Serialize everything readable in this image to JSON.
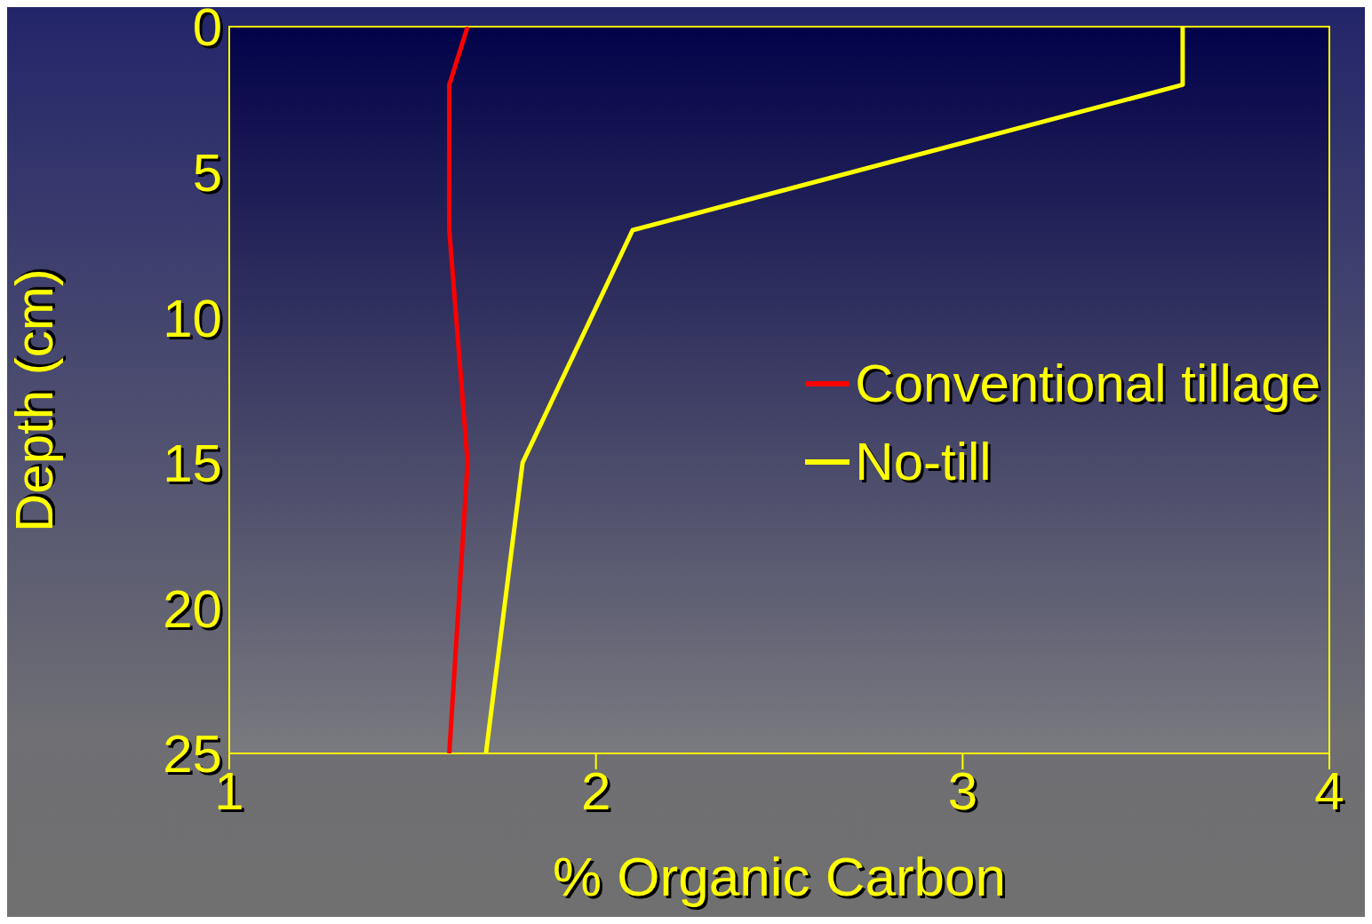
{
  "chart_data": {
    "type": "line",
    "xlabel": "% Organic Carbon",
    "ylabel": "Depth (cm)",
    "series": [
      {
        "name": "Conventional tillage",
        "color": "#ff0000",
        "x": [
          1.65,
          1.6,
          1.6,
          1.65,
          1.6
        ],
        "values": [
          0,
          2,
          7,
          15,
          25
        ]
      },
      {
        "name": "No-till",
        "color": "#ffff00",
        "x": [
          3.6,
          3.6,
          2.1,
          1.8,
          1.7
        ],
        "values": [
          0,
          2,
          7,
          15,
          25
        ]
      }
    ],
    "xlim": [
      1,
      4
    ],
    "xticks": [
      1,
      2,
      3,
      4
    ],
    "ylim": [
      25,
      0
    ],
    "yticks": [
      0,
      5,
      10,
      15,
      20,
      25
    ],
    "legend": "right",
    "marker": "none",
    "line_style": "solid"
  }
}
